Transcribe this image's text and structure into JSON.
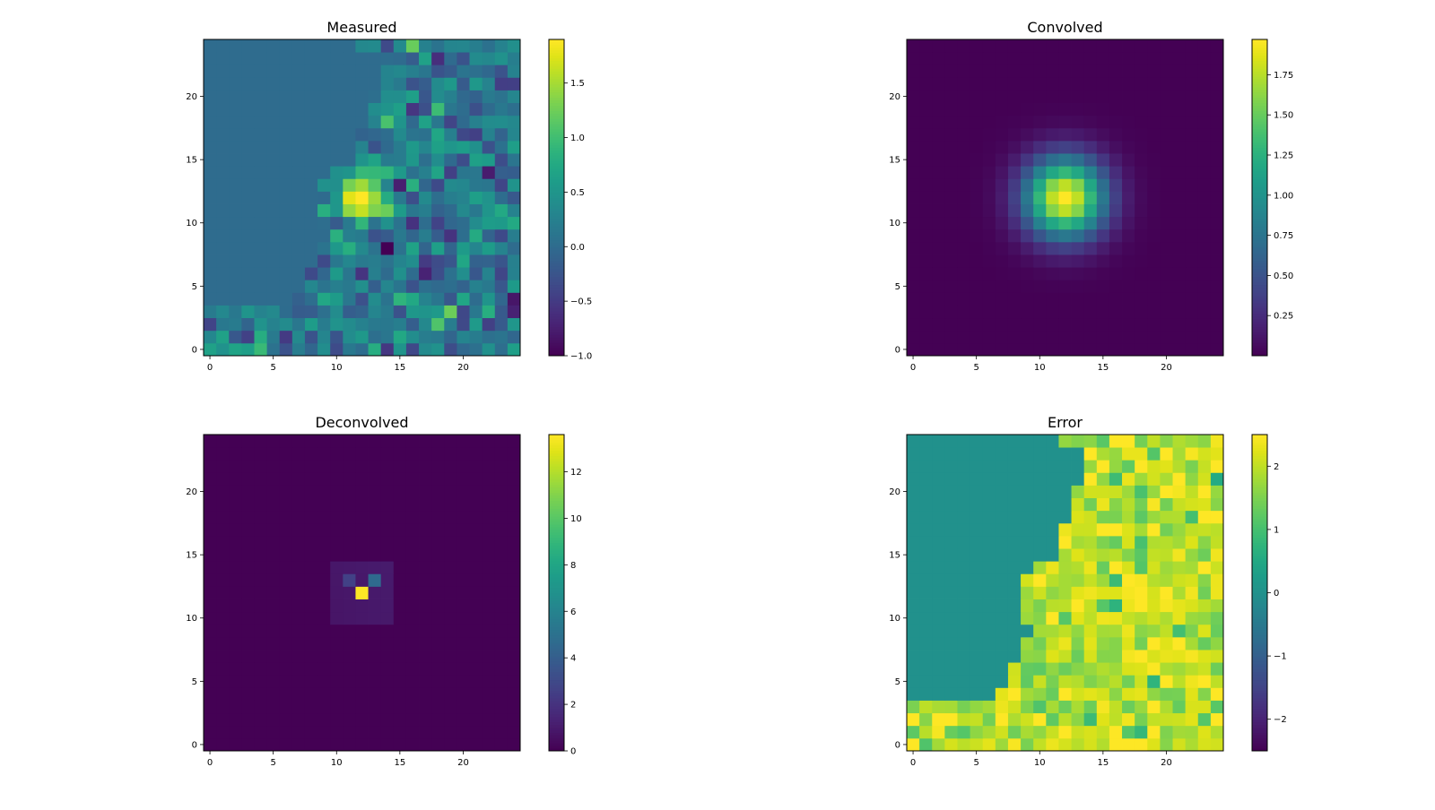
{
  "chart_data": [
    {
      "type": "heatmap",
      "title": "Measured",
      "colormap": "viridis",
      "grid_size": [
        25,
        25
      ],
      "origin": "lower",
      "xticks": [
        0,
        5,
        10,
        15,
        20
      ],
      "yticks": [
        0,
        5,
        10,
        15,
        20
      ],
      "xlim": [
        -0.5,
        24.5
      ],
      "ylim": [
        -0.5,
        24.5
      ],
      "colorbar": {
        "vmin": -1.0,
        "vmax": 1.9,
        "ticks": [
          -1.0,
          -0.5,
          0.0,
          0.5,
          1.0,
          1.5
        ],
        "tick_labels": [
          "−1.0",
          "−0.5",
          "0.0",
          "0.5",
          "1.0",
          "1.5"
        ]
      },
      "generator": "measured"
    },
    {
      "type": "heatmap",
      "title": "Convolved",
      "colormap": "viridis",
      "grid_size": [
        25,
        25
      ],
      "origin": "lower",
      "xticks": [
        0,
        5,
        10,
        15,
        20
      ],
      "yticks": [
        0,
        5,
        10,
        15,
        20
      ],
      "xlim": [
        -0.5,
        24.5
      ],
      "ylim": [
        -0.5,
        24.5
      ],
      "colorbar": {
        "vmin": 0.0,
        "vmax": 1.97,
        "ticks": [
          0.25,
          0.5,
          0.75,
          1.0,
          1.25,
          1.5,
          1.75
        ],
        "tick_labels": [
          "0.25",
          "0.50",
          "0.75",
          "1.00",
          "1.25",
          "1.50",
          "1.75"
        ]
      },
      "generator": "convolved"
    },
    {
      "type": "heatmap",
      "title": "Deconvolved",
      "colormap": "viridis",
      "grid_size": [
        25,
        25
      ],
      "origin": "lower",
      "xticks": [
        0,
        5,
        10,
        15,
        20
      ],
      "yticks": [
        0,
        5,
        10,
        15,
        20
      ],
      "xlim": [
        -0.5,
        24.5
      ],
      "ylim": [
        -0.5,
        24.5
      ],
      "colorbar": {
        "vmin": 0.0,
        "vmax": 13.6,
        "ticks": [
          0,
          2,
          4,
          6,
          8,
          10,
          12
        ],
        "tick_labels": [
          "0",
          "2",
          "4",
          "6",
          "8",
          "10",
          "12"
        ]
      },
      "generator": "deconvolved"
    },
    {
      "type": "heatmap",
      "title": "Error",
      "colormap": "viridis",
      "grid_size": [
        25,
        25
      ],
      "origin": "lower",
      "xticks": [
        0,
        5,
        10,
        15,
        20
      ],
      "yticks": [
        0,
        5,
        10,
        15,
        20
      ],
      "xlim": [
        -0.5,
        24.5
      ],
      "ylim": [
        -0.5,
        24.5
      ],
      "colorbar": {
        "vmin": -2.5,
        "vmax": 2.5,
        "ticks": [
          -2,
          -1,
          0,
          1,
          2
        ],
        "tick_labels": [
          "−2",
          "−1",
          "0",
          "1",
          "2"
        ]
      },
      "generator": "error"
    }
  ],
  "mask_first_unmasked_col_by_row": [
    0,
    0,
    0,
    0,
    7,
    8,
    8,
    9,
    9,
    10,
    9,
    9,
    9,
    9,
    10,
    12,
    12,
    12,
    13,
    13,
    13,
    14,
    14,
    14,
    12
  ],
  "psf_center": [
    12,
    12
  ],
  "colors": {
    "axis": "#000000",
    "background": "#ffffff"
  }
}
